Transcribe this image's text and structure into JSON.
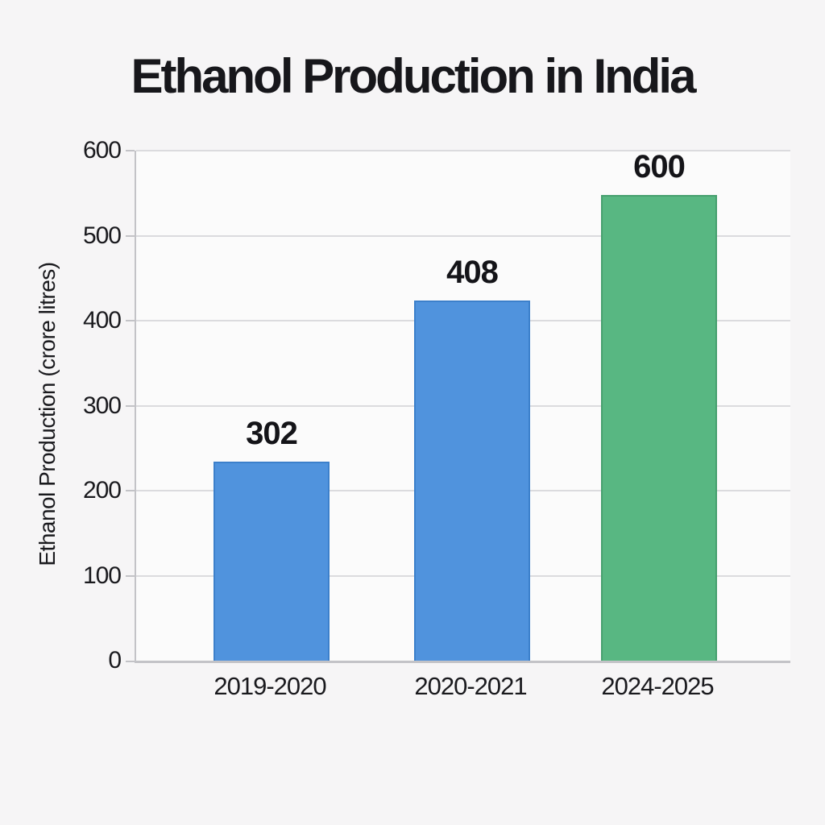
{
  "page": {
    "background_color": "#f6f5f6"
  },
  "chart_data": {
    "type": "bar",
    "title": "Ethanol Production in India",
    "xlabel": "",
    "ylabel": "Ethanol Production (crore litres)",
    "categories": [
      "2019-2020",
      "2020-2021",
      "2024-2025"
    ],
    "values": [
      302,
      408,
      600
    ],
    "bar_labels": [
      "302",
      "408",
      "600"
    ],
    "series": [
      {
        "name": "Ethanol Production",
        "values": [
          302,
          408,
          600
        ]
      }
    ],
    "ylim": [
      0,
      600
    ],
    "yticks": [
      0,
      100,
      200,
      300,
      400,
      500,
      600
    ],
    "grid": "horizontal",
    "legend_position": "none",
    "bar_colors": [
      "#5093dd",
      "#5093dd",
      "#58b782"
    ],
    "bar_edge_colors": [
      "#3c80cb",
      "#3c80cb",
      "#47a06f"
    ],
    "visual_bar_heights_units": [
      234,
      424,
      548
    ]
  },
  "style": {
    "title_color": "#17171b",
    "text_color": "#1a1a1e",
    "grid_color": "#dbdbde",
    "axis_color": "#c3c3c7",
    "accent_blue": "#5093dd",
    "accent_green": "#58b782"
  }
}
